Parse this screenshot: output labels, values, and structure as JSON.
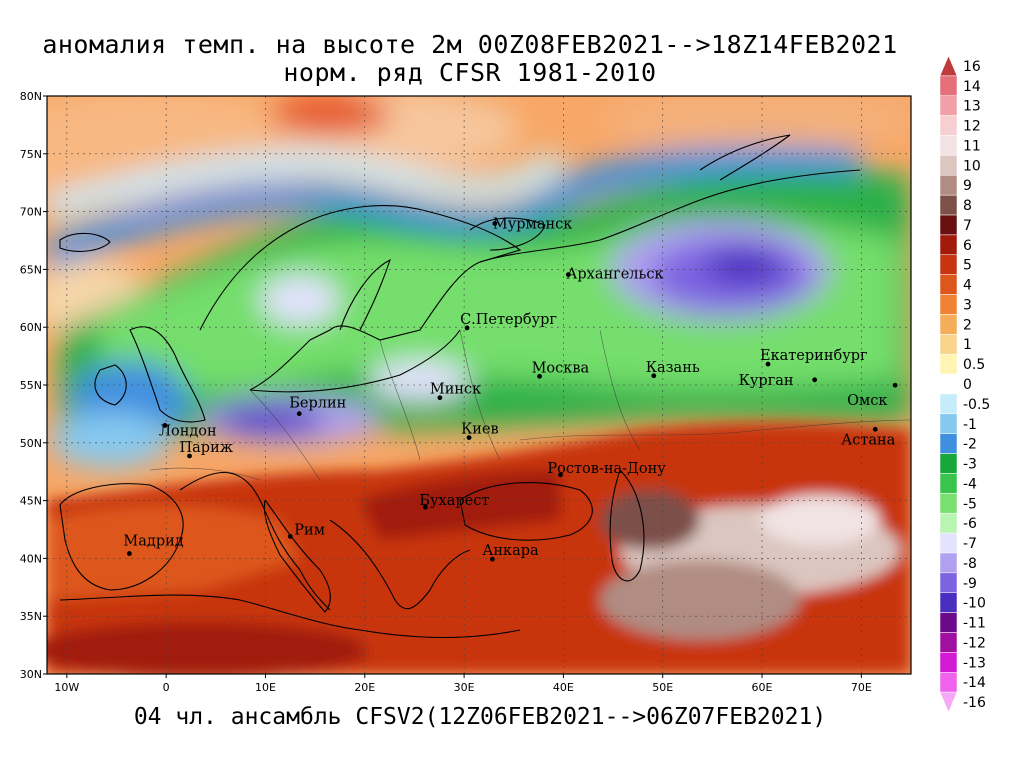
{
  "header": {
    "title_line1": "аномалия темп. на высоте 2м 00Z08FEB2021-->18Z14FEB2021",
    "title_line2": "норм. ряд CFSR 1981-2010"
  },
  "footer": {
    "caption": "04 чл. ансамбль CFSV2(12Z06FEB2021-->06Z07FEB2021)"
  },
  "map": {
    "lon_range": [
      -12,
      75
    ],
    "lat_range": [
      30,
      80
    ],
    "lat_ticks": [
      {
        "value": 80,
        "label": "80N"
      },
      {
        "value": 75,
        "label": "75N"
      },
      {
        "value": 70,
        "label": "70N"
      },
      {
        "value": 65,
        "label": "65N"
      },
      {
        "value": 60,
        "label": "60N"
      },
      {
        "value": 55,
        "label": "55N"
      },
      {
        "value": 50,
        "label": "50N"
      },
      {
        "value": 45,
        "label": "45N"
      },
      {
        "value": 40,
        "label": "40N"
      },
      {
        "value": 35,
        "label": "35N"
      },
      {
        "value": 30,
        "label": "30N"
      }
    ],
    "lon_ticks": [
      {
        "value": -10,
        "label": "10W"
      },
      {
        "value": 0,
        "label": "0"
      },
      {
        "value": 10,
        "label": "10E"
      },
      {
        "value": 20,
        "label": "20E"
      },
      {
        "value": 30,
        "label": "30E"
      },
      {
        "value": 40,
        "label": "40E"
      },
      {
        "value": 50,
        "label": "50E"
      },
      {
        "value": 60,
        "label": "60E"
      },
      {
        "value": 70,
        "label": "70E"
      }
    ],
    "cities": [
      {
        "name": "Мурманск",
        "lon": 33.1,
        "lat": 68.97,
        "dx": -2,
        "dy": 5
      },
      {
        "name": "Архангельск",
        "lon": 40.5,
        "lat": 64.55,
        "dx": -2,
        "dy": 4
      },
      {
        "name": "С.Петербург",
        "lon": 30.3,
        "lat": 59.94,
        "dx": -7,
        "dy": -4
      },
      {
        "name": "Москва",
        "lon": 37.6,
        "lat": 55.75,
        "dx": -8,
        "dy": -4
      },
      {
        "name": "Казань",
        "lon": 49.1,
        "lat": 55.8,
        "dx": -8,
        "dy": -4
      },
      {
        "name": "Екатеринбург",
        "lon": 60.6,
        "lat": 56.8,
        "dx": -8,
        "dy": -4
      },
      {
        "name": "Курган",
        "lon": 65.3,
        "lat": 55.45,
        "dx": -76,
        "dy": 5
      },
      {
        "name": "Омск",
        "lon": 73.4,
        "lat": 54.98,
        "dx": -48,
        "dy": 20
      },
      {
        "name": "Астана",
        "lon": 71.4,
        "lat": 51.17,
        "dx": -34,
        "dy": 15
      },
      {
        "name": "Минск",
        "lon": 27.56,
        "lat": 53.9,
        "dx": -10,
        "dy": -4
      },
      {
        "name": "Киев",
        "lon": 30.5,
        "lat": 50.45,
        "dx": -8,
        "dy": -4
      },
      {
        "name": "Берлин",
        "lon": 13.4,
        "lat": 52.52,
        "dx": -10,
        "dy": -6
      },
      {
        "name": "Лондон",
        "lon": -0.13,
        "lat": 51.5,
        "dx": -6,
        "dy": 10
      },
      {
        "name": "Париж",
        "lon": 2.35,
        "lat": 48.86,
        "dx": -10,
        "dy": -4
      },
      {
        "name": "Ростов-на-Дону",
        "lon": 39.7,
        "lat": 47.23,
        "dx": -13,
        "dy": -2
      },
      {
        "name": "Бухарест",
        "lon": 26.1,
        "lat": 44.43,
        "dx": -6,
        "dy": -2
      },
      {
        "name": "Рим",
        "lon": 12.5,
        "lat": 41.9,
        "dx": 4,
        "dy": -2
      },
      {
        "name": "Мадрид",
        "lon": -3.7,
        "lat": 40.42,
        "dx": -6,
        "dy": -8
      },
      {
        "name": "Анкара",
        "lon": 32.85,
        "lat": 39.93,
        "dx": -10,
        "dy": -4
      }
    ]
  },
  "colorbar": {
    "labels": [
      "16",
      "14",
      "13",
      "12",
      "11",
      "10",
      "9",
      "8",
      "7",
      "6",
      "5",
      "4",
      "3",
      "2",
      "1",
      "0.5",
      "0",
      "-0.5",
      "-1",
      "-2",
      "-3",
      "-4",
      "-5",
      "-6",
      "-7",
      "-8",
      "-9",
      "-10",
      "-11",
      "-12",
      "-13",
      "-14",
      "-16"
    ],
    "colors": [
      "#bf3b3b",
      "#e6707a",
      "#f2a0a8",
      "#f7cfd2",
      "#f1e3e3",
      "#dcc6c0",
      "#b08c82",
      "#7d5048",
      "#6a1010",
      "#a11a0a",
      "#c83410",
      "#dd561c",
      "#ef8234",
      "#f4ae5a",
      "#f9d48a",
      "#fff4b4",
      "#ffffff",
      "#c6ecfb",
      "#86c9f0",
      "#3f8fdf",
      "#18a83a",
      "#3ac44c",
      "#78e070",
      "#b8f4b2",
      "#e4e2ff",
      "#b0a0f0",
      "#7a64e0",
      "#4a2ec0",
      "#6a0a8a",
      "#a010a0",
      "#d41ad4",
      "#ee62ee",
      "#f7a8f7"
    ]
  },
  "palette": {
    "ocean": "#fa9e5e",
    "land_line": "#000000"
  }
}
